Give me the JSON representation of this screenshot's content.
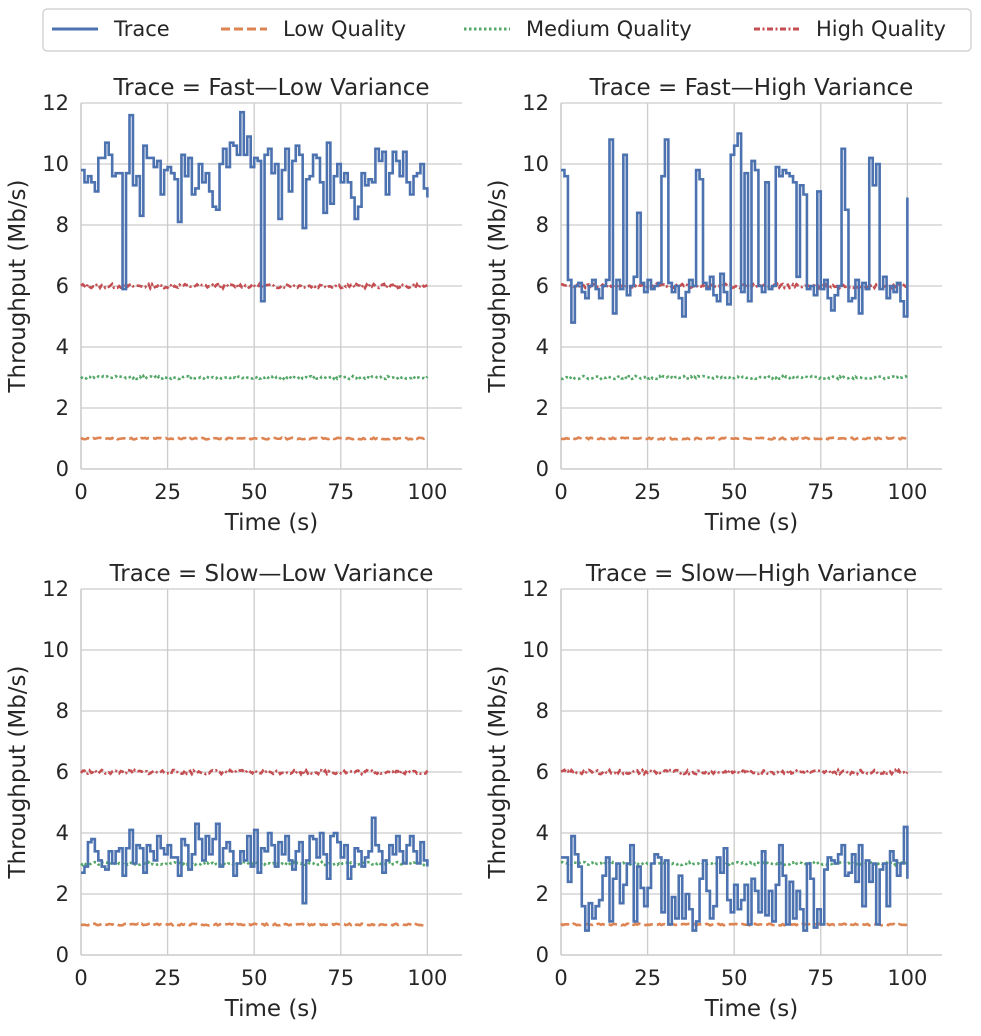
{
  "colors": {
    "trace": "#4c72b0",
    "low": "#dd8452",
    "medium": "#55a868",
    "high": "#c44e52",
    "grid": "#cccccc",
    "axis": "#cccccc"
  },
  "legend": {
    "entries": [
      {
        "label": "Trace",
        "series": "trace"
      },
      {
        "label": "Low Quality",
        "series": "low"
      },
      {
        "label": "Medium Quality",
        "series": "medium"
      },
      {
        "label": "High Quality",
        "series": "high"
      }
    ]
  },
  "chart_data": [
    {
      "type": "line",
      "title": "Trace = Fast—Low Variance",
      "xlabel": "Time (s)",
      "ylabel": "Throughput (Mb/s)",
      "xlim": [
        0,
        110
      ],
      "ylim": [
        0,
        12
      ],
      "xticks": [
        0,
        25,
        50,
        75,
        100
      ],
      "yticks": [
        0,
        2,
        4,
        6,
        8,
        10,
        12
      ],
      "series": [
        {
          "name": "Trace",
          "key": "trace",
          "step": true,
          "x": [
            0,
            1,
            2,
            3,
            4,
            5,
            6,
            7,
            8,
            9,
            10,
            11,
            12,
            13,
            14,
            15,
            16,
            17,
            18,
            19,
            20,
            21,
            22,
            23,
            24,
            25,
            26,
            27,
            28,
            29,
            30,
            31,
            32,
            33,
            34,
            35,
            36,
            37,
            38,
            39,
            40,
            41,
            42,
            43,
            44,
            45,
            46,
            47,
            48,
            49,
            50,
            51,
            52,
            53,
            54,
            55,
            56,
            57,
            58,
            59,
            60,
            61,
            62,
            63,
            64,
            65,
            66,
            67,
            68,
            69,
            70,
            71,
            72,
            73,
            74,
            75,
            76,
            77,
            78,
            79,
            80,
            81,
            82,
            83,
            84,
            85,
            86,
            87,
            88,
            89,
            90,
            91,
            92,
            93,
            94,
            95,
            96,
            97,
            98,
            99,
            100
          ],
          "y": [
            9.8,
            9.4,
            9.6,
            9.4,
            9.1,
            10.2,
            10.2,
            10.7,
            10.3,
            9.6,
            9.7,
            9.7,
            5.9,
            9.7,
            11.6,
            9.3,
            9.6,
            8.3,
            10.6,
            10.2,
            10.2,
            9.9,
            10.1,
            9.0,
            9.8,
            9.9,
            9.7,
            9.5,
            8.1,
            10.3,
            9.6,
            10.2,
            9.0,
            9.2,
            10.0,
            9.4,
            9.7,
            9.1,
            8.6,
            8.5,
            10.0,
            10.5,
            9.9,
            10.7,
            10.6,
            10.3,
            11.7,
            10.3,
            10.9,
            9.9,
            10.2,
            10.1,
            5.5,
            10.3,
            10.5,
            9.7,
            10.0,
            8.2,
            9.8,
            10.5,
            9.1,
            10.1,
            10.6,
            10.3,
            7.9,
            9.5,
            9.6,
            10.3,
            10.2,
            9.4,
            8.4,
            10.7,
            8.7,
            9.6,
            10.0,
            9.4,
            9.7,
            9.4,
            8.9,
            8.2,
            8.6,
            9.7,
            9.3,
            9.5,
            9.4,
            10.5,
            10.1,
            10.4,
            9.0,
            9.7,
            10.4,
            10.1,
            9.6,
            10.4,
            9.4,
            9.0,
            9.6,
            9.7,
            10.0,
            9.2,
            8.9
          ]
        },
        {
          "name": "Low Quality",
          "key": "low",
          "noisy": true,
          "level": 1.0,
          "amp": 0.03,
          "seed": 11
        },
        {
          "name": "Medium Quality",
          "key": "medium",
          "noisy": true,
          "level": 3.0,
          "amp": 0.05,
          "seed": 12
        },
        {
          "name": "High Quality",
          "key": "high",
          "noisy": true,
          "level": 6.0,
          "amp": 0.07,
          "seed": 13
        }
      ]
    },
    {
      "type": "line",
      "title": "Trace = Fast—High Variance",
      "xlabel": "Time (s)",
      "ylabel": "Throughput (Mb/s)",
      "xlim": [
        0,
        110
      ],
      "ylim": [
        0,
        12
      ],
      "xticks": [
        0,
        25,
        50,
        75,
        100
      ],
      "yticks": [
        0,
        2,
        4,
        6,
        8,
        10,
        12
      ],
      "series": [
        {
          "name": "Trace",
          "key": "trace",
          "step": true,
          "x": [
            0,
            1,
            2,
            3,
            4,
            5,
            6,
            7,
            8,
            9,
            10,
            11,
            12,
            13,
            14,
            15,
            16,
            17,
            18,
            19,
            20,
            21,
            22,
            23,
            24,
            25,
            26,
            27,
            28,
            29,
            30,
            31,
            32,
            33,
            34,
            35,
            36,
            37,
            38,
            39,
            40,
            41,
            42,
            43,
            44,
            45,
            46,
            47,
            48,
            49,
            50,
            51,
            52,
            53,
            54,
            55,
            56,
            57,
            58,
            59,
            60,
            61,
            62,
            63,
            64,
            65,
            66,
            67,
            68,
            69,
            70,
            71,
            72,
            73,
            74,
            75,
            76,
            77,
            78,
            79,
            80,
            81,
            82,
            83,
            84,
            85,
            86,
            87,
            88,
            89,
            90,
            91,
            92,
            93,
            94,
            95,
            96,
            97,
            98,
            99,
            100
          ],
          "y": [
            9.8,
            9.6,
            6.2,
            4.8,
            6.0,
            6.1,
            5.8,
            5.6,
            6.0,
            6.2,
            5.9,
            5.6,
            6.0,
            6.2,
            10.8,
            5.1,
            6.2,
            5.9,
            10.3,
            5.7,
            6.0,
            6.3,
            8.4,
            6.1,
            5.8,
            6.2,
            5.9,
            6.0,
            6.1,
            9.6,
            10.8,
            6.1,
            5.8,
            6.0,
            5.6,
            5.0,
            5.8,
            6.2,
            6.0,
            9.8,
            9.5,
            6.1,
            5.9,
            6.3,
            5.7,
            5.5,
            6.4,
            5.8,
            5.4,
            10.3,
            10.6,
            11.0,
            5.8,
            9.7,
            5.5,
            10.1,
            9.8,
            6.0,
            5.8,
            9.4,
            5.9,
            6.0,
            9.9,
            9.6,
            9.8,
            9.7,
            9.6,
            9.4,
            6.3,
            9.3,
            9.0,
            5.9,
            6.0,
            5.7,
            9.1,
            5.9,
            6.2,
            5.6,
            5.2,
            5.7,
            6.0,
            10.5,
            8.5,
            5.5,
            5.6,
            6.2,
            5.1,
            6.1,
            5.9,
            10.2,
            9.3,
            10.0,
            5.9,
            6.3,
            5.6,
            6.0,
            5.8,
            6.1,
            5.5,
            5.0,
            8.9
          ]
        },
        {
          "name": "Low Quality",
          "key": "low",
          "noisy": true,
          "level": 1.0,
          "amp": 0.03,
          "seed": 21
        },
        {
          "name": "Medium Quality",
          "key": "medium",
          "noisy": true,
          "level": 3.0,
          "amp": 0.05,
          "seed": 22
        },
        {
          "name": "High Quality",
          "key": "high",
          "noisy": true,
          "level": 6.0,
          "amp": 0.07,
          "seed": 23
        }
      ]
    },
    {
      "type": "line",
      "title": "Trace = Slow—Low Variance",
      "xlabel": "Time (s)",
      "ylabel": "Throughput (Mb/s)",
      "xlim": [
        0,
        110
      ],
      "ylim": [
        0,
        12
      ],
      "xticks": [
        0,
        25,
        50,
        75,
        100
      ],
      "yticks": [
        0,
        2,
        4,
        6,
        8,
        10,
        12
      ],
      "series": [
        {
          "name": "Trace",
          "key": "trace",
          "step": true,
          "x": [
            0,
            1,
            2,
            3,
            4,
            5,
            6,
            7,
            8,
            9,
            10,
            11,
            12,
            13,
            14,
            15,
            16,
            17,
            18,
            19,
            20,
            21,
            22,
            23,
            24,
            25,
            26,
            27,
            28,
            29,
            30,
            31,
            32,
            33,
            34,
            35,
            36,
            37,
            38,
            39,
            40,
            41,
            42,
            43,
            44,
            45,
            46,
            47,
            48,
            49,
            50,
            51,
            52,
            53,
            54,
            55,
            56,
            57,
            58,
            59,
            60,
            61,
            62,
            63,
            64,
            65,
            66,
            67,
            68,
            69,
            70,
            71,
            72,
            73,
            74,
            75,
            76,
            77,
            78,
            79,
            80,
            81,
            82,
            83,
            84,
            85,
            86,
            87,
            88,
            89,
            90,
            91,
            92,
            93,
            94,
            95,
            96,
            97,
            98,
            99,
            100
          ],
          "y": [
            2.7,
            2.9,
            3.7,
            3.8,
            3.4,
            3.1,
            2.9,
            2.8,
            3.4,
            3.0,
            3.4,
            3.5,
            2.6,
            3.5,
            4.1,
            3.0,
            3.6,
            3.5,
            2.7,
            3.6,
            3.4,
            3.1,
            3.9,
            3.5,
            3.3,
            3.6,
            3.2,
            3.2,
            2.6,
            3.8,
            3.6,
            2.8,
            3.3,
            4.3,
            3.8,
            3.1,
            3.9,
            3.3,
            3.8,
            4.3,
            2.9,
            3.5,
            3.7,
            3.4,
            2.6,
            3.0,
            3.4,
            3.1,
            3.9,
            2.9,
            4.1,
            2.7,
            3.5,
            3.4,
            4.0,
            3.6,
            2.9,
            3.7,
            3.3,
            3.9,
            3.1,
            2.8,
            3.4,
            3.7,
            1.7,
            3.1,
            3.9,
            3.8,
            3.2,
            4.0,
            3.3,
            2.5,
            3.9,
            4.0,
            3.7,
            3.2,
            3.6,
            2.5,
            2.9,
            3.5,
            3.4,
            2.9,
            3.2,
            3.4,
            4.5,
            3.6,
            3.4,
            2.7,
            3.1,
            3.6,
            3.3,
            3.9,
            3.4,
            3.0,
            3.6,
            3.9,
            3.4,
            3.0,
            3.7,
            3.1,
            2.9
          ]
        },
        {
          "name": "Low Quality",
          "key": "low",
          "noisy": true,
          "level": 1.0,
          "amp": 0.03,
          "seed": 31
        },
        {
          "name": "Medium Quality",
          "key": "medium",
          "noisy": true,
          "level": 3.0,
          "amp": 0.05,
          "seed": 32
        },
        {
          "name": "High Quality",
          "key": "high",
          "noisy": true,
          "level": 6.0,
          "amp": 0.07,
          "seed": 33
        }
      ]
    },
    {
      "type": "line",
      "title": "Trace = Slow—High Variance",
      "xlabel": "Time (s)",
      "ylabel": "Throughput (Mb/s)",
      "xlim": [
        0,
        110
      ],
      "ylim": [
        0,
        12
      ],
      "xticks": [
        0,
        25,
        50,
        75,
        100
      ],
      "yticks": [
        0,
        2,
        4,
        6,
        8,
        10,
        12
      ],
      "series": [
        {
          "name": "Trace",
          "key": "trace",
          "step": true,
          "x": [
            0,
            1,
            2,
            3,
            4,
            5,
            6,
            7,
            8,
            9,
            10,
            11,
            12,
            13,
            14,
            15,
            16,
            17,
            18,
            19,
            20,
            21,
            22,
            23,
            24,
            25,
            26,
            27,
            28,
            29,
            30,
            31,
            32,
            33,
            34,
            35,
            36,
            37,
            38,
            39,
            40,
            41,
            42,
            43,
            44,
            45,
            46,
            47,
            48,
            49,
            50,
            51,
            52,
            53,
            54,
            55,
            56,
            57,
            58,
            59,
            60,
            61,
            62,
            63,
            64,
            65,
            66,
            67,
            68,
            69,
            70,
            71,
            72,
            73,
            74,
            75,
            76,
            77,
            78,
            79,
            80,
            81,
            82,
            83,
            84,
            85,
            86,
            87,
            88,
            89,
            90,
            91,
            92,
            93,
            94,
            95,
            96,
            97,
            98,
            99,
            100
          ],
          "y": [
            3.2,
            3.2,
            2.4,
            3.9,
            3.3,
            2.9,
            1.6,
            0.8,
            1.7,
            1.2,
            1.6,
            1.8,
            2.6,
            3.2,
            1.1,
            2.5,
            3.0,
            1.7,
            2.3,
            3.0,
            3.6,
            1.1,
            2.9,
            2.2,
            1.6,
            2.2,
            3.0,
            3.3,
            3.2,
            1.4,
            3.1,
            1.0,
            1.9,
            1.2,
            2.6,
            1.2,
            2.0,
            1.5,
            0.8,
            1.1,
            2.5,
            3.1,
            2.1,
            1.2,
            1.6,
            3.2,
            2.7,
            3.5,
            1.8,
            1.4,
            2.3,
            1.5,
            1.8,
            2.3,
            1.0,
            2.5,
            2.1,
            1.4,
            3.4,
            1.3,
            2.1,
            1.1,
            2.3,
            3.6,
            2.6,
            1.0,
            2.4,
            1.2,
            2.1,
            1.5,
            0.8,
            3.0,
            2.5,
            0.9,
            1.5,
            1.0,
            2.8,
            3.2,
            3.1,
            3.0,
            3.3,
            3.6,
            2.6,
            2.7,
            3.3,
            2.4,
            3.6,
            1.6,
            3.1,
            2.4,
            3.0,
            1.0,
            2.8,
            3.0,
            1.6,
            3.4,
            3.1,
            2.6,
            3.0,
            4.2,
            2.5
          ]
        },
        {
          "name": "Low Quality",
          "key": "low",
          "noisy": true,
          "level": 1.0,
          "amp": 0.03,
          "seed": 41
        },
        {
          "name": "Medium Quality",
          "key": "medium",
          "noisy": true,
          "level": 3.0,
          "amp": 0.05,
          "seed": 42
        },
        {
          "name": "High Quality",
          "key": "high",
          "noisy": true,
          "level": 6.0,
          "amp": 0.07,
          "seed": 43
        }
      ]
    }
  ]
}
